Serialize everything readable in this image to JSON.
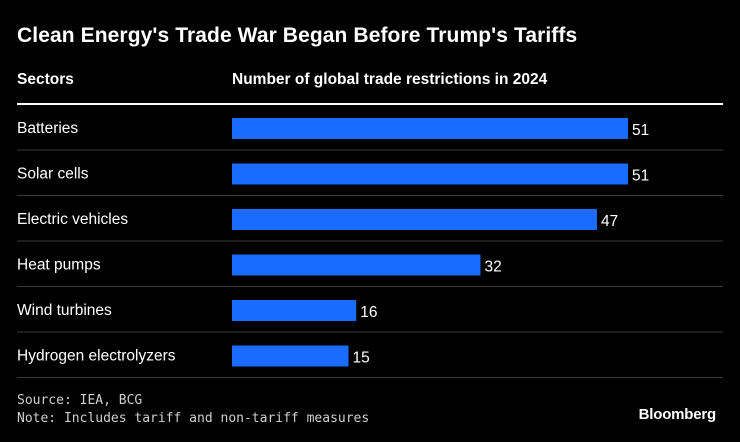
{
  "chart_data": {
    "type": "bar",
    "orientation": "horizontal",
    "title": "Clean Energy's Trade War Began Before Trump's Tariffs",
    "category_header": "Sectors",
    "value_header": "Number of global trade restrictions in 2024",
    "categories": [
      "Batteries",
      "Solar cells",
      "Electric vehicles",
      "Heat pumps",
      "Wind turbines",
      "Hydrogen electrolyzers"
    ],
    "values": [
      51,
      51,
      47,
      32,
      16,
      15
    ],
    "xlim": [
      0,
      51
    ],
    "bar_color": "#1a6cff"
  },
  "footer": {
    "source": "Source: IEA, BCG",
    "note": "Note: Includes tariff and non-tariff measures"
  },
  "brand": "Bloomberg"
}
